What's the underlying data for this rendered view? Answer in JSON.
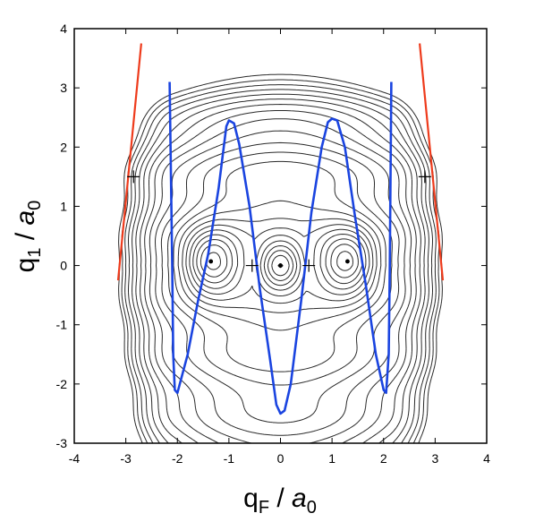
{
  "chart_data": {
    "type": "line",
    "xlim": [
      -4,
      4
    ],
    "ylim": [
      -3,
      4
    ],
    "xticks": [
      "-4",
      "-3",
      "-2",
      "-1",
      "0",
      "1",
      "2",
      "3",
      "4"
    ],
    "yticks": [
      "-3",
      "-2",
      "-1",
      "0",
      "1",
      "2",
      "3",
      "4"
    ],
    "xlabel": {
      "main": "q",
      "sub": "F",
      "sep": " / ",
      "unit": "a",
      "unit_sub": "0"
    },
    "ylabel": {
      "main": "q",
      "sub": "1",
      "sep": " / ",
      "unit": "a",
      "unit_sub": "0"
    },
    "colors": {
      "contour": "#2a2a2a",
      "blue_path": "#1a44e0",
      "red_line": "#ee3b1c",
      "axes": "#000000"
    },
    "minima": [
      [
        -1.35,
        0.07
      ],
      [
        0.0,
        0.0
      ],
      [
        1.3,
        0.07
      ]
    ],
    "saddles": [
      [
        -0.55,
        0.0
      ],
      [
        0.55,
        0.0
      ],
      [
        -2.85,
        1.5
      ],
      [
        2.8,
        1.5
      ]
    ],
    "red_lines": [
      {
        "name": "left",
        "points": [
          [
            -3.15,
            -0.25
          ],
          [
            -2.7,
            3.75
          ]
        ]
      },
      {
        "name": "right",
        "points": [
          [
            2.7,
            3.75
          ],
          [
            3.15,
            -0.25
          ]
        ]
      }
    ],
    "blue_path": [
      [
        -2.15,
        3.1
      ],
      [
        -2.1,
        0.0
      ],
      [
        -2.08,
        -1.5
      ],
      [
        -2.05,
        -2.1
      ],
      [
        -2.0,
        -2.15
      ],
      [
        -1.8,
        -1.5
      ],
      [
        -1.6,
        -0.6
      ],
      [
        -1.4,
        0.2
      ],
      [
        -1.2,
        1.3
      ],
      [
        -1.05,
        2.35
      ],
      [
        -1.0,
        2.45
      ],
      [
        -0.9,
        2.4
      ],
      [
        -0.8,
        2.05
      ],
      [
        -0.6,
        1.0
      ],
      [
        -0.4,
        -0.4
      ],
      [
        -0.2,
        -1.6
      ],
      [
        -0.08,
        -2.35
      ],
      [
        0.0,
        -2.5
      ],
      [
        0.08,
        -2.45
      ],
      [
        0.2,
        -2.0
      ],
      [
        0.4,
        -0.6
      ],
      [
        0.6,
        0.9
      ],
      [
        0.8,
        2.0
      ],
      [
        0.92,
        2.42
      ],
      [
        1.0,
        2.48
      ],
      [
        1.1,
        2.45
      ],
      [
        1.25,
        2.0
      ],
      [
        1.45,
        0.8
      ],
      [
        1.65,
        -0.3
      ],
      [
        1.85,
        -1.5
      ],
      [
        2.0,
        -2.1
      ],
      [
        2.05,
        -2.15
      ],
      [
        2.1,
        -1.5
      ],
      [
        2.12,
        0.0
      ],
      [
        2.15,
        3.1
      ]
    ]
  }
}
